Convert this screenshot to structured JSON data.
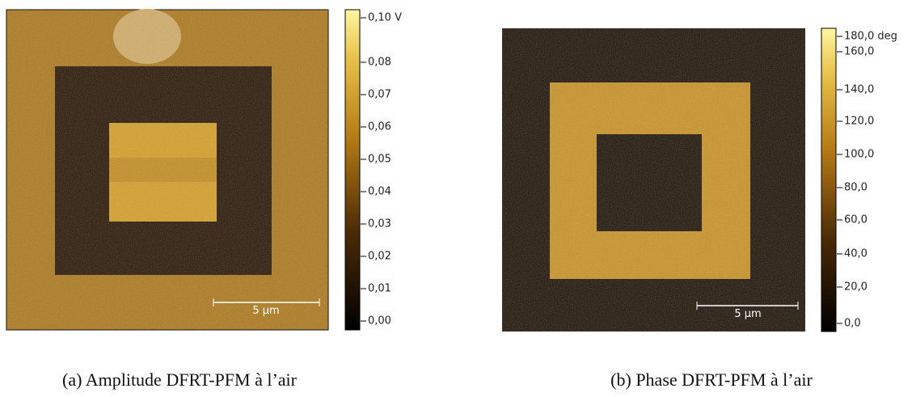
{
  "panels": [
    {
      "caption": "(a) Amplitude DFRT-PFM à l’air",
      "scale_bar": "5 µm",
      "colorbar": [
        "0,10 V",
        "0,08",
        "0,07",
        "0,06",
        "0,05",
        "0,04",
        "0,03",
        "0,02",
        "0,01",
        "0,00"
      ]
    },
    {
      "caption": "(b) Phase DFRT-PFM à l’air",
      "scale_bar": "5 µm",
      "colorbar": [
        "180,0 deg",
        "160,0",
        "140,0",
        "120,0",
        "100,0",
        "80,0",
        "60,0",
        "40,0",
        "20,0",
        "0,0"
      ]
    }
  ]
}
